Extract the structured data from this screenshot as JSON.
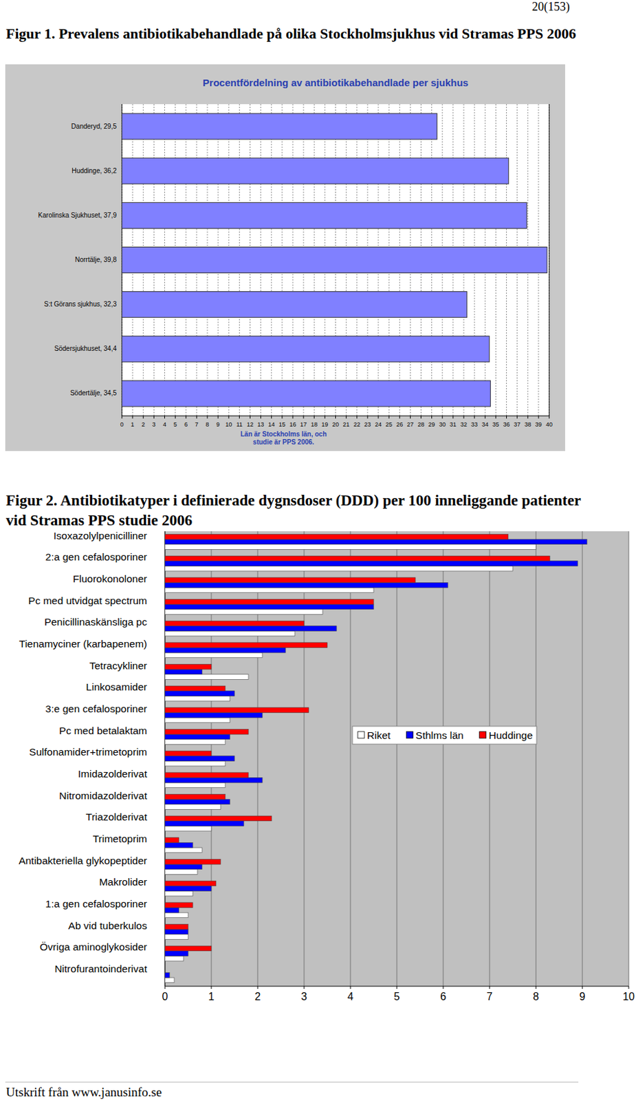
{
  "document": {
    "page_number": "20(153)",
    "captions": [
      "Figur 1. Prevalens antibiotikabehandlade på olika Stockholmsjukhus vid Stramas PPS 2006",
      "Figur 2. Antibiotikatyper i definierade dygnsdoser (DDD) per 100 inneliggande patienter vid Stramas PPS studie 2006"
    ],
    "footer": "Utskrift från www.janusinfo.se"
  },
  "chart_data": [
    {
      "type": "bar",
      "orientation": "horizontal",
      "title": "Procentfördelning av antibiotikabehandlade per sjukhus",
      "x_label": "Län är Stockholms län, och\nstudie är PPS 2006.",
      "categories": [
        "Danderyd, 29,5",
        "Huddinge, 36,2",
        "Karolinska Sjukhuset, 37,9",
        "Norrtälje, 39,8",
        "S:t Görans sjukhus, 32,3",
        "Södersjukhuset, 34,4",
        "Södertälje, 34,5"
      ],
      "values": [
        29.5,
        36.2,
        37.9,
        39.8,
        32.3,
        34.4,
        34.5
      ],
      "color": "#8080ff",
      "xlim": [
        0,
        40
      ],
      "xticks": [
        0,
        1,
        2,
        3,
        4,
        5,
        6,
        7,
        8,
        9,
        10,
        11,
        12,
        13,
        14,
        15,
        16,
        17,
        18,
        19,
        20,
        21,
        22,
        23,
        24,
        25,
        26,
        27,
        28,
        29,
        30,
        31,
        32,
        33,
        34,
        35,
        36,
        37,
        38,
        39,
        40
      ],
      "grid": true
    },
    {
      "type": "bar",
      "orientation": "horizontal",
      "categories": [
        "Isoxazolylpenicilliner",
        "2:a gen cefalosporiner",
        "Fluorokonoloner",
        "Pc med utvidgat spectrum",
        "Penicillinaskänsliga pc",
        "Tienamyciner (karbapenem)",
        "Tetracykliner",
        "Linkosamider",
        "3:e gen cefalosporiner",
        "Pc med betalaktam",
        "Sulfonamider+trimetoprim",
        "Imidazolderivat",
        "Nitromidazolderivat",
        "Triazolderivat",
        "Trimetoprim",
        "Antibakteriella glykopeptider",
        "Makrolider",
        "1:a gen cefalosporiner",
        "Ab vid tuberkulos",
        "Övriga aminoglykosider",
        "Nitrofurantoinderivat"
      ],
      "series": [
        {
          "name": "Riket",
          "color": "#ffffff",
          "values": [
            8.0,
            7.5,
            4.5,
            3.4,
            2.8,
            2.1,
            1.8,
            1.4,
            1.4,
            1.3,
            1.3,
            1.3,
            1.2,
            1.0,
            0.8,
            0.7,
            0.6,
            0.5,
            0.5,
            0.4,
            0.2
          ]
        },
        {
          "name": "Sthlms län",
          "color": "#0000ff",
          "values": [
            9.1,
            8.9,
            6.1,
            4.5,
            3.7,
            2.6,
            0.8,
            1.5,
            2.1,
            1.4,
            1.5,
            2.1,
            1.4,
            1.7,
            0.6,
            0.8,
            1.0,
            0.3,
            0.5,
            0.5,
            0.1
          ]
        },
        {
          "name": "Huddinge",
          "color": "#ff0000",
          "values": [
            7.4,
            8.3,
            5.4,
            4.5,
            3.0,
            3.5,
            1.0,
            1.3,
            3.1,
            1.8,
            1.0,
            1.8,
            1.3,
            2.3,
            0.3,
            1.2,
            1.1,
            0.6,
            0.5,
            1.0,
            0
          ]
        }
      ],
      "xlim": [
        0,
        10
      ],
      "xticks": [
        0,
        1,
        2,
        3,
        4,
        5,
        6,
        7,
        8,
        9,
        10
      ],
      "grid": true,
      "legend": "right"
    }
  ]
}
